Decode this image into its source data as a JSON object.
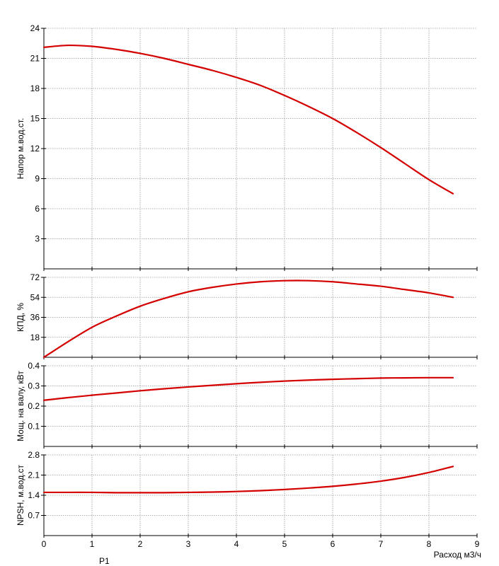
{
  "chart_data": [
    {
      "type": "line",
      "ylabel": "Напор м.вод.ст.",
      "xlabel": "",
      "xlim": [
        0,
        9
      ],
      "ylim": [
        0,
        24
      ],
      "yticks": [
        "3",
        "6",
        "9",
        "12",
        "15",
        "18",
        "21",
        "24"
      ],
      "grid": true,
      "line_color": "#d40000",
      "x": [
        0,
        0.5,
        1,
        1.5,
        2,
        2.5,
        3,
        3.5,
        4,
        4.5,
        5,
        5.5,
        6,
        6.5,
        7,
        7.5,
        8,
        8.5
      ],
      "y": [
        22.1,
        22.3,
        22.2,
        21.9,
        21.5,
        21.0,
        20.4,
        19.8,
        19.1,
        18.3,
        17.3,
        16.2,
        15.0,
        13.6,
        12.1,
        10.5,
        8.9,
        7.5
      ]
    },
    {
      "type": "line",
      "ylabel": "КПД, %",
      "xlabel": "",
      "xlim": [
        0,
        9
      ],
      "ylim": [
        0,
        72
      ],
      "yticks": [
        "18",
        "36",
        "54",
        "72"
      ],
      "grid": true,
      "line_color": "#d40000",
      "x": [
        0,
        0.5,
        1,
        1.5,
        2,
        2.5,
        3,
        3.5,
        4,
        4.5,
        5,
        5.5,
        6,
        6.5,
        7,
        7.5,
        8,
        8.5
      ],
      "y": [
        0,
        14,
        27,
        37,
        46,
        53,
        59,
        63,
        66,
        68,
        69,
        69,
        68,
        66,
        64,
        61,
        58,
        54
      ]
    },
    {
      "type": "line",
      "ylabel": "Мощ. на валу, кВт",
      "xlabel": "",
      "xlim": [
        0,
        9
      ],
      "ylim": [
        0,
        0.4
      ],
      "yticks": [
        "0.1",
        "0.2",
        "0.3",
        "0.4"
      ],
      "grid": true,
      "line_color": "#d40000",
      "x": [
        0,
        0.5,
        1,
        1.5,
        2,
        2.5,
        3,
        3.5,
        4,
        4.5,
        5,
        5.5,
        6,
        6.5,
        7,
        7.5,
        8,
        8.5
      ],
      "y": [
        0.229,
        0.242,
        0.254,
        0.265,
        0.276,
        0.286,
        0.295,
        0.303,
        0.311,
        0.318,
        0.324,
        0.329,
        0.333,
        0.336,
        0.339,
        0.34,
        0.341,
        0.341
      ]
    },
    {
      "type": "line",
      "ylabel": "NPSH, м.вод.ст",
      "xlabel": "Расход м3/ч",
      "xlim": [
        0,
        9
      ],
      "ylim": [
        0,
        2.8
      ],
      "xticks": [
        "0",
        "1",
        "2",
        "3",
        "4",
        "5",
        "6",
        "7",
        "8",
        "9"
      ],
      "yticks": [
        "0.7",
        "1.4",
        "2.1",
        "2.8"
      ],
      "grid": true,
      "line_color": "#d40000",
      "x": [
        0,
        0.5,
        1,
        1.5,
        2,
        2.5,
        3,
        3.5,
        4,
        4.5,
        5,
        5.5,
        6,
        6.5,
        7,
        7.5,
        8,
        8.5
      ],
      "y": [
        1.5,
        1.5,
        1.5,
        1.49,
        1.49,
        1.49,
        1.5,
        1.51,
        1.53,
        1.56,
        1.6,
        1.65,
        1.71,
        1.79,
        1.89,
        2.02,
        2.19,
        2.4
      ]
    }
  ],
  "footnote": "P1"
}
